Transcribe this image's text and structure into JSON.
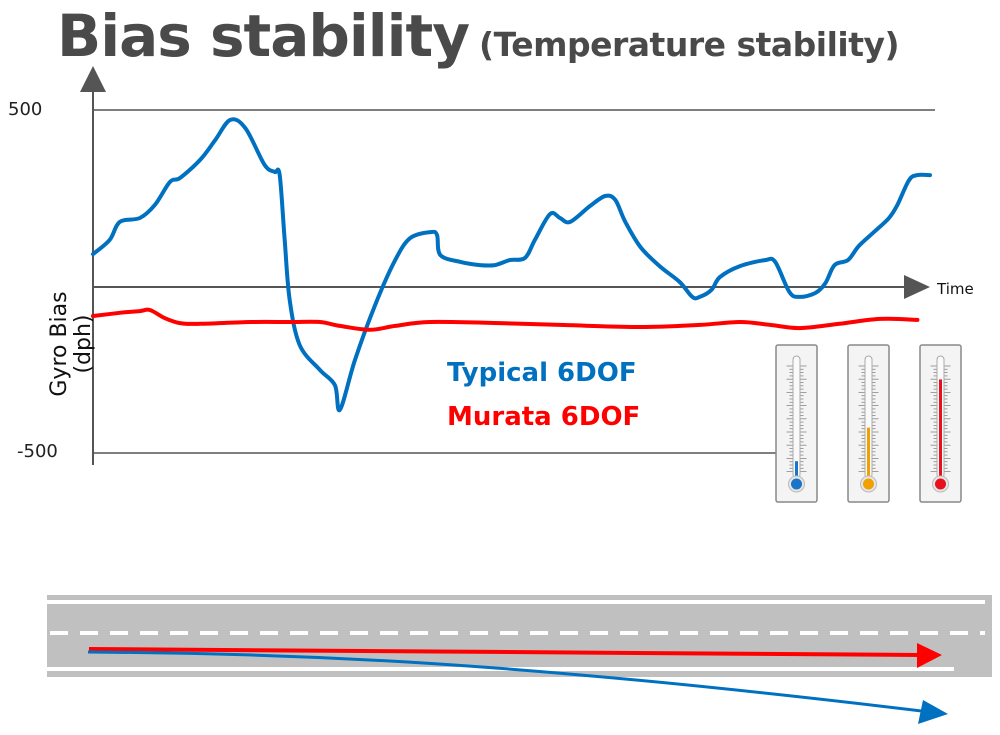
{
  "title": {
    "main": "Bias stability",
    "subtitle": "(Temperature stability)"
  },
  "chart_data": {
    "type": "line",
    "title": "Bias stability (Temperature stability)",
    "xlabel": "Time",
    "ylabel": "Gyro Bias (dph)",
    "ylabel_lines": [
      "Gyro Bias",
      "(dph)"
    ],
    "ylim": [
      -500,
      500
    ],
    "xlim": [
      0,
      100
    ],
    "yticks": [
      "500",
      "-500"
    ],
    "grid": "horizontal lines at 500, 0, -500",
    "legend": [
      {
        "label": "Typical 6DOF",
        "color": "#0070c0"
      },
      {
        "label": "Murata 6DOF",
        "color": "#ff0000"
      }
    ],
    "legend_placement": "center-bottom",
    "series": [
      {
        "name": "Typical 6DOF",
        "color": "#0070c0",
        "x": [
          0,
          2,
          3.2,
          5.6,
          7.4,
          9.2,
          10.4,
          12.8,
          14.6,
          16.4,
          18.2,
          20.5,
          21.7,
          22.3,
          22.9,
          23.5,
          24.7,
          27.1,
          28.9,
          29.5,
          31.3,
          33.7,
          36.1,
          37.9,
          40.3,
          41.1,
          41.5,
          43.9,
          46.2,
          48,
          49.8,
          51.6,
          52.8,
          54.6,
          55.8,
          57,
          59.4,
          61.2,
          62.4,
          63.6,
          65.4,
          67.7,
          70.1,
          71.6,
          72.5,
          73.9,
          74.9,
          77.3,
          80.3,
          81.5,
          83.2,
          84.4,
          86.3,
          87.5,
          88.6,
          90.2,
          91.5,
          93.3,
          95.1,
          96.1,
          97.5,
          98.5,
          100
        ],
        "y": [
          93,
          133,
          184,
          195,
          232,
          297,
          308,
          359,
          415,
          472,
          449,
          345,
          325,
          316,
          133,
          -37,
          -164,
          -234,
          -277,
          -347,
          -206,
          -51,
          76,
          138,
          155,
          147,
          90,
          71,
          62,
          62,
          76,
          82,
          133,
          206,
          195,
          184,
          229,
          257,
          246,
          184,
          113,
          59,
          14,
          -28,
          -28,
          -8,
          28,
          59,
          76,
          71,
          -14,
          -28,
          -17,
          11,
          62,
          76,
          116,
          155,
          195,
          232,
          302,
          316,
          316
        ]
      },
      {
        "name": "Murata 6DOF",
        "color": "#ff0000",
        "x": [
          0,
          3.2,
          5.6,
          6.8,
          8.6,
          10.4,
          12.8,
          18.8,
          23.5,
          27.1,
          29.5,
          33.1,
          36.1,
          40.3,
          48.6,
          55.8,
          65.4,
          72.5,
          77.3,
          80.9,
          84.4,
          89.2,
          94,
          98.5
        ],
        "y": [
          -82,
          -73,
          -68,
          -65,
          -88,
          -102,
          -104,
          -99,
          -99,
          -99,
          -110,
          -121,
          -110,
          -99,
          -102,
          -107,
          -113,
          -107,
          -99,
          -107,
          -116,
          -104,
          -90,
          -93
        ]
      }
    ]
  },
  "thermometers": [
    {
      "name": "cold",
      "color": "#1a75c8",
      "level": 0.15
    },
    {
      "name": "warm",
      "color": "#f0a000",
      "level": 0.45
    },
    {
      "name": "hot",
      "color": "#e8101c",
      "level": 0.88
    }
  ],
  "road": {
    "murata_path_color": "#ff0000",
    "typical_path_color": "#0070c0"
  }
}
